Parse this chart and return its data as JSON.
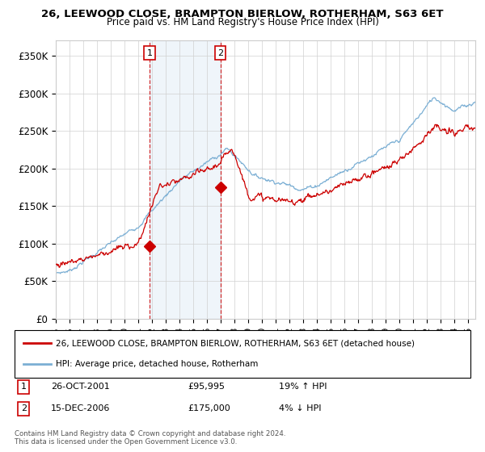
{
  "title": "26, LEEWOOD CLOSE, BRAMPTON BIERLOW, ROTHERHAM, S63 6ET",
  "subtitle": "Price paid vs. HM Land Registry's House Price Index (HPI)",
  "ylabel_ticks": [
    "£0",
    "£50K",
    "£100K",
    "£150K",
    "£200K",
    "£250K",
    "£300K",
    "£350K"
  ],
  "ytick_values": [
    0,
    50000,
    100000,
    150000,
    200000,
    250000,
    300000,
    350000
  ],
  "ylim": [
    0,
    370000
  ],
  "legend_line1": "26, LEEWOOD CLOSE, BRAMPTON BIERLOW, ROTHERHAM, S63 6ET (detached house)",
  "legend_line2": "HPI: Average price, detached house, Rotherham",
  "sale1_label": "1",
  "sale1_date": "26-OCT-2001",
  "sale1_price": "£95,995",
  "sale1_hpi": "19% ↑ HPI",
  "sale2_label": "2",
  "sale2_date": "15-DEC-2006",
  "sale2_price": "£175,000",
  "sale2_hpi": "4% ↓ HPI",
  "footnote": "Contains HM Land Registry data © Crown copyright and database right 2024.\nThis data is licensed under the Open Government Licence v3.0.",
  "hpi_color": "#7bafd4",
  "price_color": "#CC0000",
  "sale1_x": 2001.82,
  "sale1_y": 95995,
  "sale2_x": 2006.96,
  "sale2_y": 175000,
  "shade_xmin": 2001.82,
  "shade_xmax": 2006.96,
  "xmin": 1995,
  "xmax": 2025.5,
  "background_color": "#ffffff"
}
